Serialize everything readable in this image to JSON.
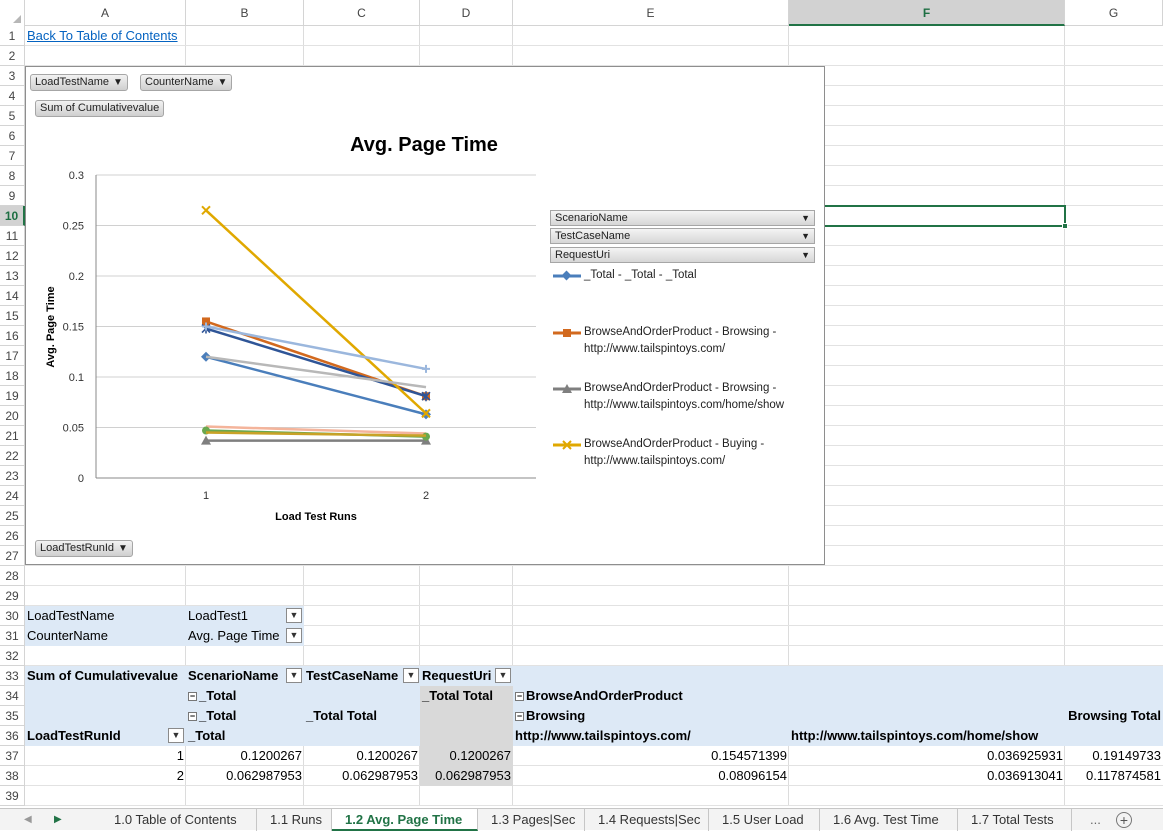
{
  "columns": [
    "A",
    "B",
    "C",
    "D",
    "E",
    "F",
    "G"
  ],
  "active_column": "F",
  "rows": [
    "1",
    "2",
    "3",
    "4",
    "5",
    "6",
    "7",
    "8",
    "9",
    "10",
    "11",
    "12",
    "13",
    "14",
    "15",
    "16",
    "17",
    "18",
    "19",
    "20",
    "21",
    "22",
    "23",
    "24",
    "25",
    "26",
    "27",
    "28",
    "29",
    "30",
    "31",
    "32",
    "33",
    "34",
    "35",
    "36",
    "37",
    "38",
    "39"
  ],
  "active_row": "10",
  "link_text": "Back To Table of Contents",
  "chart": {
    "filter_buttons": [
      "LoadTestName",
      "CounterName"
    ],
    "value_button": "Sum of Cumulativevalue",
    "axis_button": "LoadTestRunId",
    "legend_fields": [
      "ScenarioName",
      "TestCaseName",
      "RequestUri"
    ],
    "legend_entries": [
      {
        "line1": "_Total - _Total - _Total",
        "line2": ""
      },
      {
        "line1": "BrowseAndOrderProduct - Browsing -",
        "line2": "http://www.tailspintoys.com/"
      },
      {
        "line1": "BrowseAndOrderProduct - Browsing -",
        "line2": "http://www.tailspintoys.com/home/show"
      },
      {
        "line1": "BrowseAndOrderProduct - Buying -",
        "line2": "http://www.tailspintoys.com/"
      }
    ]
  },
  "chart_data": {
    "type": "line",
    "title": "Avg. Page Time",
    "xlabel": "Load Test Runs",
    "ylabel": "Avg. Page Time",
    "categories": [
      "1",
      "2"
    ],
    "ylim": [
      0,
      0.3
    ],
    "yticks": [
      "0",
      "0.05",
      "0.1",
      "0.15",
      "0.2",
      "0.25",
      "0.3"
    ],
    "grid": true,
    "legend": "right",
    "series": [
      {
        "name": "_Total - _Total - _Total",
        "color": "#4a7ebb",
        "marker": "diamond",
        "values": [
          0.12,
          0.063
        ]
      },
      {
        "name": "BrowseAndOrderProduct - Browsing - http://www.tailspintoys.com/",
        "color": "#d2691e",
        "marker": "square",
        "values": [
          0.155,
          0.081
        ]
      },
      {
        "color": "#2f5597",
        "marker": "star",
        "values": [
          0.148,
          0.081
        ]
      },
      {
        "name": "BrowseAndOrderProduct - Browsing - http://www.tailspintoys.com/home/show",
        "color": "#7f7f7f",
        "marker": "triangle",
        "values": [
          0.037,
          0.037
        ]
      },
      {
        "name": "BrowseAndOrderProduct - Buying - http://www.tailspintoys.com/",
        "color": "#e0a800",
        "marker": "x",
        "values": [
          0.265,
          0.064
        ]
      },
      {
        "color": "#9bb7dd",
        "marker": "plus",
        "values": [
          0.15,
          0.108
        ]
      },
      {
        "color": "#b8b8b8",
        "marker": "none",
        "values": [
          0.12,
          0.09
        ]
      },
      {
        "color": "#f4b49b",
        "marker": "none",
        "values": [
          0.051,
          0.044
        ]
      },
      {
        "color": "#6aa84f",
        "marker": "circle",
        "values": [
          0.047,
          0.041
        ]
      },
      {
        "color": "#c9a227",
        "marker": "none",
        "values": [
          0.045,
          0.042
        ]
      }
    ]
  },
  "pivot": {
    "filters": [
      {
        "label": "LoadTestName",
        "value": "LoadTest1"
      },
      {
        "label": "CounterName",
        "value": "Avg. Page Time"
      }
    ],
    "header": {
      "values_label": "Sum of Cumulativevalue",
      "scenario": "ScenarioName",
      "testcase": "TestCaseName",
      "requesturi": "RequestUri",
      "total1": "_Total",
      "total_total": "_Total Total",
      "browse": "BrowseAndOrderProduct",
      "total2": "_Total",
      "testcase_total": "_Total Total",
      "browsing": "Browsing",
      "row_label": "LoadTestRunId",
      "total3": "_Total",
      "uri1": "http://www.tailspintoys.com/",
      "uri2": "http://www.tailspintoys.com/home/show",
      "browsing_total": "Browsing Total"
    },
    "rows": [
      {
        "id": "1",
        "b": "0.1200267",
        "c": "0.1200267",
        "d": "0.1200267",
        "e": "0.154571399",
        "f": "0.036925931",
        "g": "0.19149733"
      },
      {
        "id": "2",
        "b": "0.062987953",
        "c": "0.062987953",
        "d": "0.062987953",
        "e": "0.08096154",
        "f": "0.036913041",
        "g": "0.117874581"
      }
    ]
  },
  "tabs": [
    "1.0 Table of Contents",
    "1.1 Runs",
    "1.2 Avg. Page Time",
    "1.3 Pages|Sec",
    "1.4 Requests|Sec",
    "1.5 User Load",
    "1.6 Avg. Test Time",
    "1.7 Total Tests"
  ],
  "active_tab": "1.2 Avg. Page Time",
  "nav": {
    "more": "...",
    "add": "+"
  }
}
